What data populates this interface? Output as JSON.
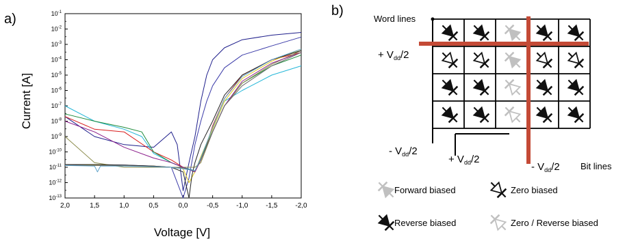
{
  "panel_a": {
    "label": "a)",
    "chart_data": {
      "type": "line",
      "xlabel": "Voltage  [V]",
      "ylabel": "Current [A]",
      "x_ticks": [
        2.0,
        1.5,
        1.0,
        0.5,
        0.0,
        -0.5,
        -1.0,
        -1.5,
        -2.0
      ],
      "x_tick_labels": [
        "2,0",
        "1,5",
        "1,0",
        "0,5",
        "0,0",
        "-0,5",
        "-1,0",
        "-1,5",
        "-2,0"
      ],
      "xlim": [
        2.0,
        -2.0
      ],
      "y_scale": "log",
      "ylim": [
        1e-13,
        0.1
      ],
      "y_ticks": [
        {
          "base": "10",
          "exp": "-1"
        },
        {
          "base": "10",
          "exp": "-2"
        },
        {
          "base": "10",
          "exp": "-3"
        },
        {
          "base": "10",
          "exp": "-4"
        },
        {
          "base": "10",
          "exp": "-5"
        },
        {
          "base": "10",
          "exp": "-6"
        },
        {
          "base": "10",
          "exp": "-7"
        },
        {
          "base": "10",
          "exp": "-8"
        },
        {
          "base": "10",
          "exp": "-9"
        },
        {
          "base": "10",
          "exp": "-10"
        },
        {
          "base": "10",
          "exp": "-11"
        },
        {
          "base": "10",
          "exp": "-12"
        },
        {
          "base": "10",
          "exp": "-13"
        }
      ],
      "y_tick_exponents": [
        -1,
        -2,
        -3,
        -4,
        -5,
        -6,
        -7,
        -8,
        -9,
        -10,
        -11,
        -12,
        -13
      ],
      "grid": false,
      "series": [
        {
          "color": "#1c1c8a",
          "x": [
            2.0,
            1.5,
            1.0,
            0.5,
            0.2,
            0.1,
            0.0,
            -0.1,
            -0.2,
            -0.3,
            -0.4,
            -0.5,
            -0.7,
            -1.0,
            -1.5,
            -2.0
          ],
          "y": [
            2e-08,
            1e-09,
            3e-10,
            2e-10,
            2e-09,
            3e-10,
            3e-13,
            2e-11,
            1e-09,
            2e-07,
            1e-05,
            0.0001,
            0.0006,
            0.002,
            0.004,
            0.006
          ]
        },
        {
          "color": "#3a3aa8",
          "x": [
            2.0,
            1.5,
            1.0,
            0.5,
            0.2,
            0.0,
            -0.1,
            -0.2,
            -0.3,
            -0.4,
            -0.5,
            -0.7,
            -1.0,
            -1.5,
            -2.0
          ],
          "y": [
            1.5e-11,
            1.5e-11,
            1.4e-11,
            1.2e-11,
            1e-11,
            1e-13,
            2e-12,
            3e-10,
            1e-08,
            2e-07,
            2e-06,
            3e-05,
            0.0002,
            0.0008,
            0.003
          ]
        },
        {
          "color": "#22b6d8",
          "x": [
            2.0,
            1.5,
            1.0,
            0.7,
            0.5,
            0.2,
            0.0,
            -0.2,
            -0.3,
            -0.5,
            -0.7,
            -1.0,
            -1.5,
            -2.0
          ],
          "y": [
            1e-07,
            1e-08,
            3e-09,
            1e-09,
            8e-11,
            2e-11,
            1e-11,
            6e-12,
            3e-11,
            3e-09,
            2e-07,
            1e-06,
            1e-05,
            4e-05
          ]
        },
        {
          "color": "#d81c1c",
          "x": [
            2.0,
            1.5,
            1.0,
            0.5,
            0.2,
            0.0,
            -0.2,
            -0.3,
            -0.4,
            -0.5,
            -0.7,
            -1.0,
            -1.5,
            -2.0
          ],
          "y": [
            2e-08,
            3e-09,
            2e-09,
            1e-10,
            3e-11,
            1e-11,
            5e-12,
            3e-11,
            3e-10,
            5e-09,
            3e-07,
            1e-05,
            0.0001,
            0.0003
          ]
        },
        {
          "color": "#1c8a3a",
          "x": [
            2.0,
            1.5,
            1.0,
            0.7,
            0.5,
            0.2,
            0.0,
            -0.2,
            -0.3,
            -0.5,
            -0.7,
            -1.0,
            -1.5,
            -2.0
          ],
          "y": [
            3e-08,
            1e-08,
            4e-09,
            2e-09,
            1e-10,
            2e-11,
            1e-11,
            5e-12,
            4e-11,
            2e-09,
            1e-07,
            3e-06,
            4e-05,
            0.0002
          ]
        },
        {
          "color": "#8a8a4a",
          "x": [
            2.0,
            1.5,
            1.0,
            0.5,
            0.2,
            0.0,
            -0.2,
            -0.3,
            -0.5,
            -0.7,
            -1.0,
            -1.5,
            -2.0
          ],
          "y": [
            1e-09,
            2e-11,
            1e-11,
            1e-11,
            1e-11,
            1e-11,
            1e-11,
            2e-11,
            2e-09,
            1e-07,
            3e-06,
            5e-05,
            0.0004
          ]
        },
        {
          "color": "#e0c81c",
          "x": [
            2.0,
            1.5,
            1.0,
            0.5,
            0.2,
            0.0,
            -0.1,
            -0.2,
            -0.3,
            -0.5,
            -0.7,
            -1.0,
            -1.5,
            -2.0
          ],
          "y": [
            1.4e-11,
            1.4e-11,
            1.3e-11,
            1.2e-11,
            1e-11,
            8e-12,
            1e-12,
            5e-12,
            5e-11,
            3e-09,
            2e-07,
            6e-06,
            8e-05,
            0.0005
          ]
        },
        {
          "color": "#8a1c8a",
          "x": [
            2.0,
            1.5,
            1.0,
            0.5,
            0.2,
            0.0,
            -0.2,
            -0.3,
            -0.5,
            -0.7,
            -1.0,
            -1.5,
            -2.0
          ],
          "y": [
            1e-08,
            2e-09,
            2e-10,
            4e-11,
            2e-11,
            1e-11,
            5e-12,
            3e-11,
            2e-09,
            1e-07,
            4e-06,
            6e-05,
            0.0003
          ]
        },
        {
          "color": "#222222",
          "x": [
            2.0,
            1.5,
            1.0,
            0.5,
            0.2,
            0.0,
            -0.1,
            -0.15,
            -0.2,
            -0.3,
            -0.5,
            -0.7,
            -1.0,
            -1.5,
            -2.0
          ],
          "y": [
            1.5e-11,
            1.5e-11,
            1.4e-11,
            1.2e-11,
            1e-11,
            5e-12,
            1e-13,
            3e-12,
            2e-11,
            3e-10,
            1e-08,
            5e-07,
            1e-05,
            0.0001,
            0.0004
          ]
        },
        {
          "color": "#6a6a6a",
          "x": [
            2.0,
            1.5,
            1.0,
            0.5,
            0.2,
            0.0,
            -0.2,
            -0.3,
            -0.5,
            -0.7,
            -1.0,
            -1.5,
            -2.0
          ],
          "y": [
            1.4e-11,
            1.3e-11,
            1.3e-11,
            1.1e-11,
            1e-11,
            9e-12,
            6e-12,
            3e-11,
            2e-09,
            1e-07,
            2e-06,
            4e-05,
            0.0003
          ]
        },
        {
          "color": "#5aa0c8",
          "x": [
            2.0,
            1.5,
            1.45,
            1.4,
            1.0,
            0.5,
            0.2,
            0.0,
            -0.2,
            -0.3,
            -0.5,
            -0.7,
            -1.0,
            -1.5,
            -2.0
          ],
          "y": [
            1.3e-11,
            1.2e-11,
            5e-12,
            1.2e-11,
            1.2e-11,
            1.1e-11,
            1e-11,
            8e-12,
            6e-12,
            4e-11,
            4e-09,
            3e-07,
            8e-06,
            0.0001,
            0.0005
          ]
        }
      ]
    }
  },
  "panel_b": {
    "label": "b)",
    "labels": {
      "word_lines": "Word lines",
      "bit_lines": "Bit lines",
      "plus_vdd_left": {
        "sign": "+ V",
        "sub": "dd",
        "tail": "/2"
      },
      "minus_vdd_left": {
        "sign": "- V",
        "sub": "dd",
        "tail": "/2"
      },
      "plus_vdd_bottom": {
        "sign": "+ V",
        "sub": "dd",
        "tail": "/2"
      },
      "minus_vdd_bottom": {
        "sign": "- V",
        "sub": "dd",
        "tail": "/2"
      }
    },
    "colors": {
      "selected_line": "#c44a36",
      "reverse": "#111111",
      "forward": "#c0c0c0",
      "zero": "#111111",
      "zero_reverse": "#c0c0c0"
    },
    "grid": [
      [
        "reverse",
        "reverse",
        "forward",
        "reverse",
        "reverse"
      ],
      [
        "zero",
        "zero",
        "forward",
        "zero",
        "zero"
      ],
      [
        "reverse",
        "reverse",
        "zero_reverse",
        "reverse",
        "reverse"
      ],
      [
        "reverse",
        "reverse",
        "zero_reverse",
        "reverse",
        "reverse"
      ]
    ],
    "legend": [
      {
        "type": "forward",
        "label": "Forward biased"
      },
      {
        "type": "zero",
        "label": "Zero biased"
      },
      {
        "type": "reverse",
        "label": "Reverse biased"
      },
      {
        "type": "zero_reverse",
        "label": "Zero / Reverse biased"
      }
    ]
  }
}
